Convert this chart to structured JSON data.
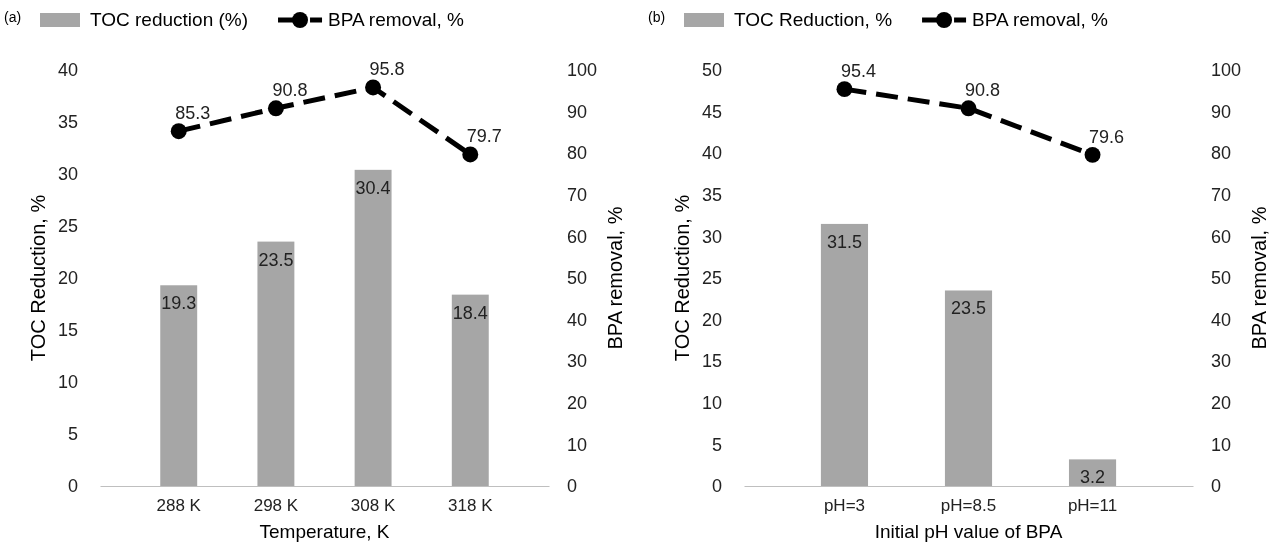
{
  "chart_data": [
    {
      "type": "bar",
      "title": "(a)",
      "categories": [
        "288 K",
        "298 K",
        "308 K",
        "318 K"
      ],
      "xlabel": "Temperature, K",
      "ylabel": "TOC Reduction, %",
      "y2label": "BPA removal, %",
      "ylim": [
        0,
        40
      ],
      "yticks": [
        0,
        5,
        10,
        15,
        20,
        25,
        30,
        35,
        40
      ],
      "y2lim": [
        0,
        100
      ],
      "y2ticks": [
        0,
        10,
        20,
        30,
        40,
        50,
        60,
        70,
        80,
        90,
        100
      ],
      "legend": "top",
      "data_labels": true,
      "series": [
        {
          "name": "TOC reduction (%)",
          "color": "#a6a6a6",
          "values": [
            19.3,
            23.5,
            30.4,
            18.4
          ]
        },
        {
          "name": "BPA removal, %",
          "type": "line",
          "axis": "y2",
          "color": "#000000",
          "marker": "circle",
          "line_style": "dashed",
          "values": [
            85.3,
            90.8,
            95.8,
            79.7
          ]
        }
      ]
    },
    {
      "type": "bar",
      "title": "(b)",
      "categories": [
        "pH=3",
        "pH=8.5",
        "pH=11"
      ],
      "xlabel": "Initial pH value of BPA",
      "ylabel": "TOC Reduction, %",
      "y2label": "BPA removal, %",
      "ylim": [
        0,
        50
      ],
      "yticks": [
        0,
        5,
        10,
        15,
        20,
        25,
        30,
        35,
        40,
        45,
        50
      ],
      "y2lim": [
        0,
        100
      ],
      "y2ticks": [
        0,
        10,
        20,
        30,
        40,
        50,
        60,
        70,
        80,
        90,
        100
      ],
      "legend": "top",
      "data_labels": true,
      "series": [
        {
          "name": "TOC Reduction, %",
          "color": "#a6a6a6",
          "values": [
            31.5,
            23.5,
            3.2
          ]
        },
        {
          "name": "BPA removal, %",
          "type": "line",
          "axis": "y2",
          "color": "#000000",
          "marker": "circle",
          "line_style": "dashed",
          "values": [
            95.4,
            90.8,
            79.6
          ]
        }
      ]
    }
  ]
}
